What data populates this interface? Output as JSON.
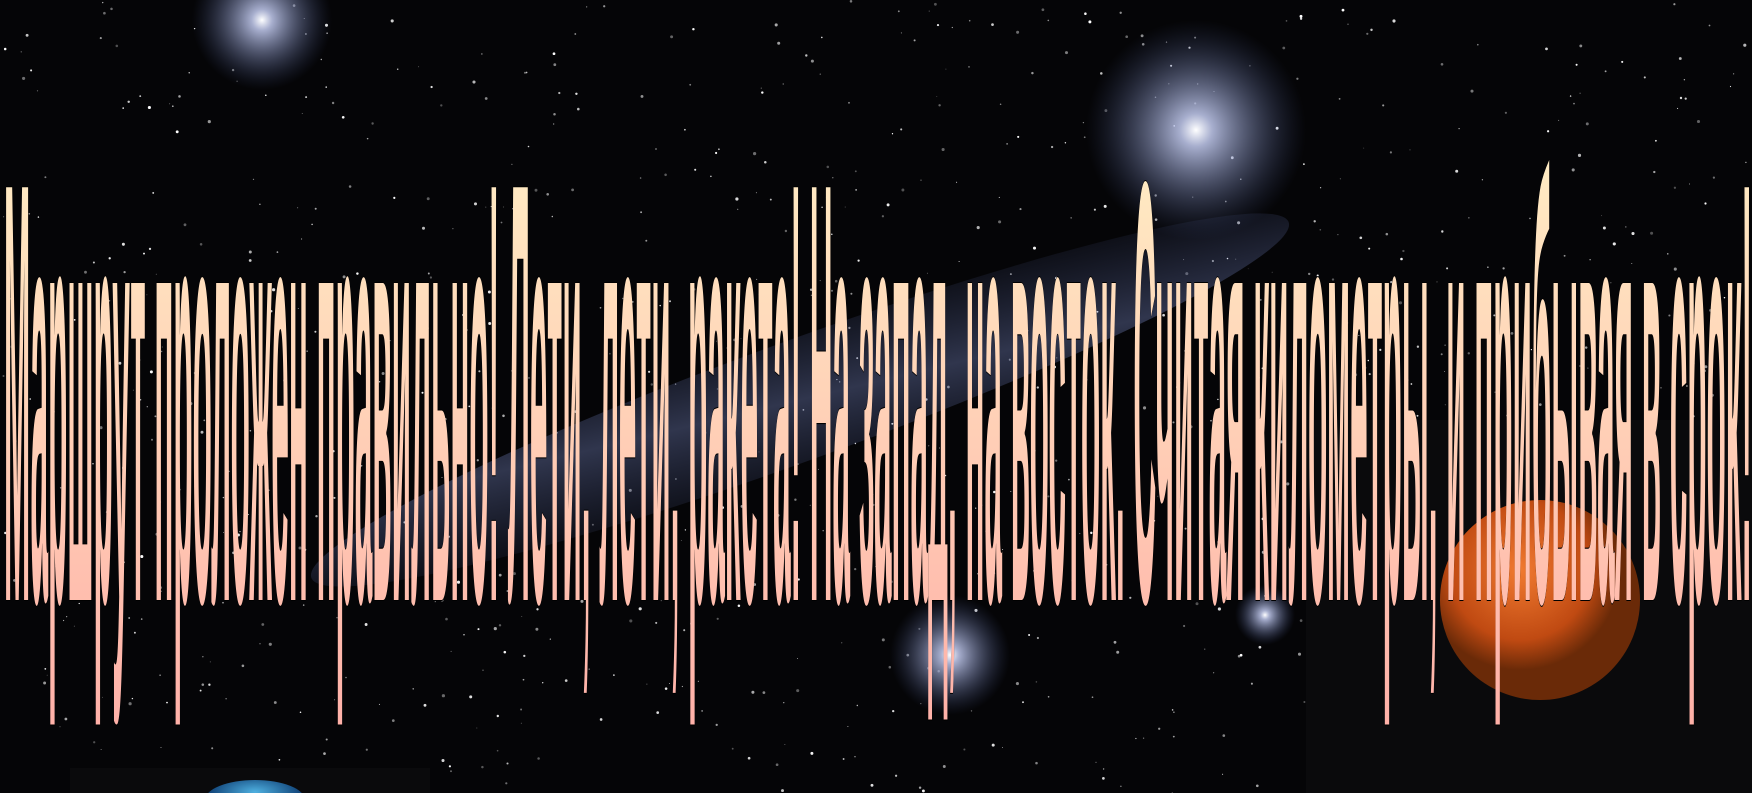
{
  "slide": {
    "text": "Маршрут проложен правильно! Лети, лети, ракета! На запад, на восток. Считая километры, и прибывая в срок!"
  }
}
